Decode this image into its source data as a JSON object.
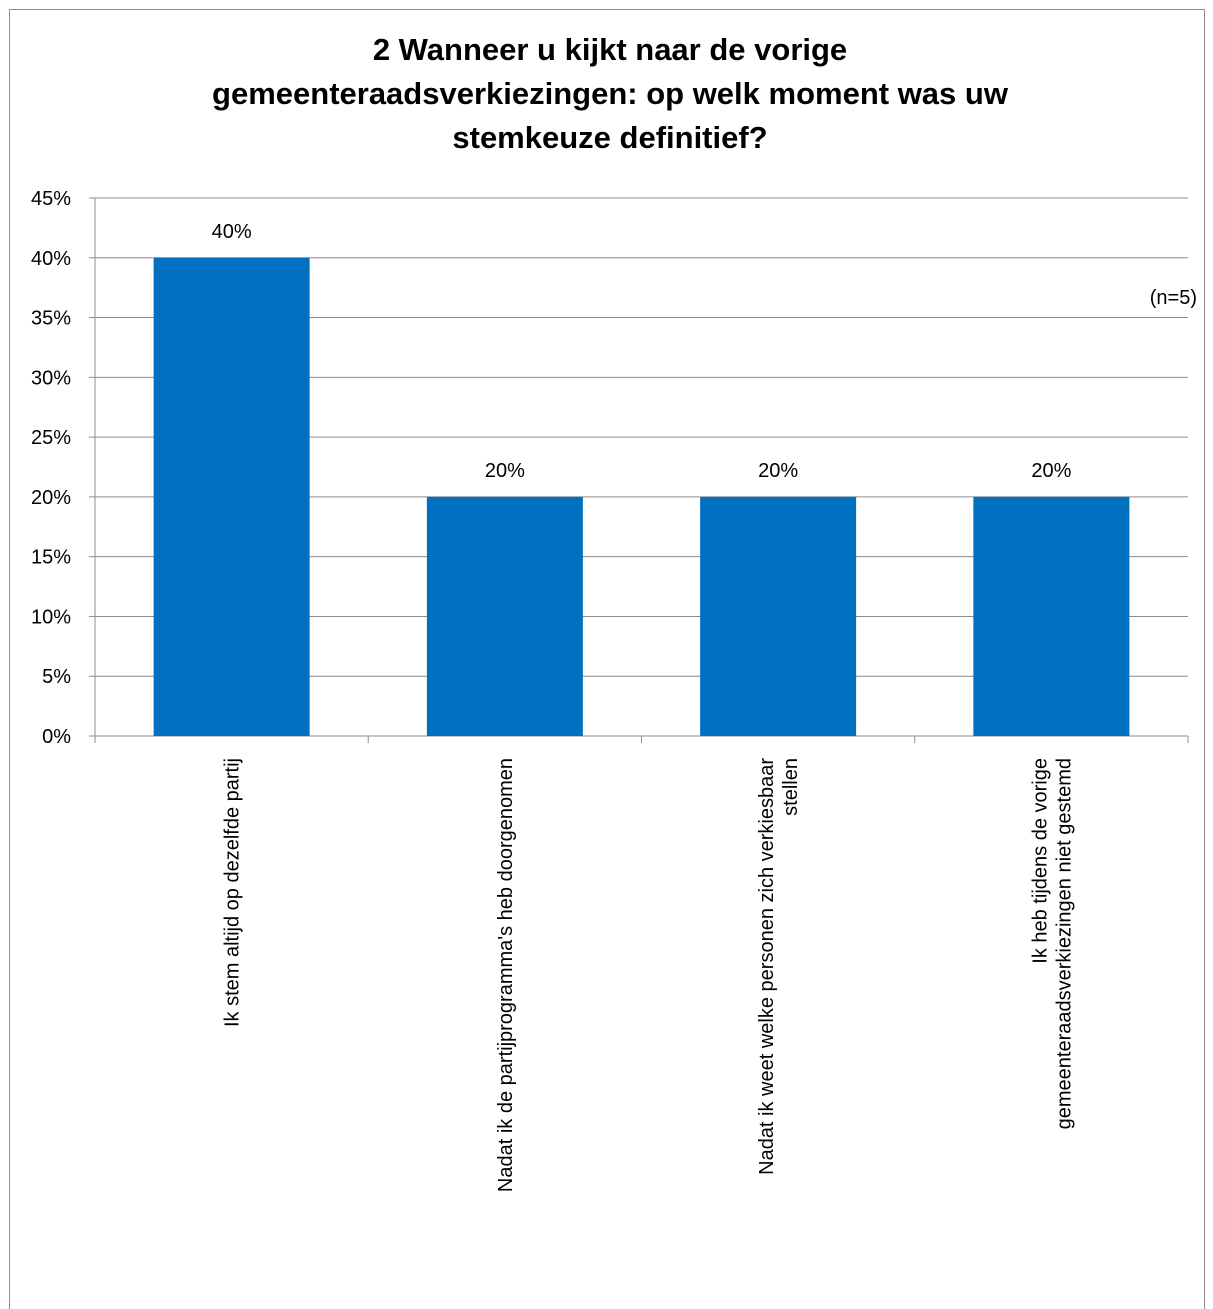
{
  "chart_data": {
    "type": "bar",
    "title_lines": [
      "2 Wanneer u kijkt naar de vorige",
      "gemeenteraadsverkiezingen: op welk moment was uw",
      "stemkeuze definitief?"
    ],
    "note": "(n=5)",
    "categories": [
      [
        "Ik stem altijd op dezelfde partij"
      ],
      [
        "Nadat ik de partijprogramma's heb doorgenomen"
      ],
      [
        "Nadat ik weet welke personen zich verkiesbaar",
        "stellen"
      ],
      [
        "Ik heb tijdens de vorige",
        "gemeenteraadsverkiezingen niet gestemd"
      ]
    ],
    "values": [
      40,
      20,
      20,
      20
    ],
    "data_labels": [
      "40%",
      "20%",
      "20%",
      "20%"
    ],
    "ylim": [
      0,
      45
    ],
    "y_ticks": [
      "0%",
      "5%",
      "10%",
      "15%",
      "20%",
      "25%",
      "30%",
      "35%",
      "40%",
      "45%"
    ],
    "bar_color": "#0070C0",
    "grid": true
  }
}
